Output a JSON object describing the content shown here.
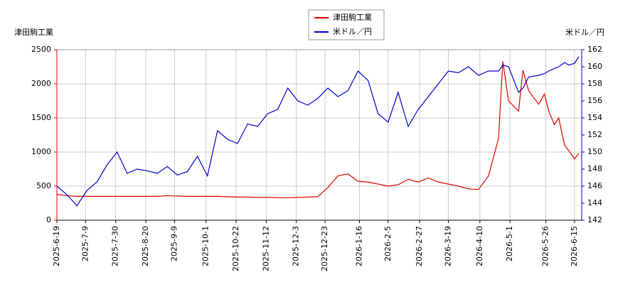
{
  "chart_data": {
    "type": "line",
    "legend": "top",
    "grid": true,
    "ylabel": "津田駒工業",
    "y2label": "米ドル／円",
    "x": [
      "2025-6-19",
      "2025-6-26",
      "2025-7-3",
      "2025-7-10",
      "2025-7-17",
      "2025-7-24",
      "2025-7-31",
      "2025-8-7",
      "2025-8-14",
      "2025-8-21",
      "2025-8-28",
      "2025-9-4",
      "2025-9-11",
      "2025-9-18",
      "2025-9-25",
      "2025-10-2",
      "2025-10-9",
      "2025-10-16",
      "2025-10-23",
      "2025-10-30",
      "2025-11-6",
      "2025-11-13",
      "2025-11-20",
      "2025-11-27",
      "2025-12-4",
      "2025-12-11",
      "2025-12-18",
      "2025-12-25",
      "2026-1-1",
      "2026-1-8",
      "2026-1-15",
      "2026-1-22",
      "2026-1-29",
      "2026-2-5",
      "2026-2-12",
      "2026-2-19",
      "2026-2-26",
      "2026-3-5",
      "2026-3-12",
      "2026-3-19",
      "2026-3-26",
      "2026-4-2",
      "2026-4-9",
      "2026-4-16",
      "2026-4-23",
      "2026-4-26",
      "2026-4-30",
      "2026-5-7",
      "2026-5-10",
      "2026-5-14",
      "2026-5-21",
      "2026-5-25",
      "2026-5-28",
      "2026-6-1",
      "2026-6-4",
      "2026-6-8",
      "2026-6-11",
      "2026-6-15",
      "2026-6-18"
    ],
    "xlim": [
      "2025-6-19",
      "2026-6-20"
    ],
    "xticks": [
      "2025-6-19",
      "2025-7-9",
      "2025-7-30",
      "2025-8-20",
      "2025-9-9",
      "2025-10-1",
      "2025-10-22",
      "2025-11-12",
      "2025-12-3",
      "2025-12-23",
      "2026-1-16",
      "2026-2-5",
      "2026-2-27",
      "2026-3-19",
      "2026-4-10",
      "2026-5-1",
      "2026-5-26",
      "2026-6-15"
    ],
    "ylim": [
      0,
      2500
    ],
    "yticks": [
      0,
      500,
      1000,
      1500,
      2000,
      2500
    ],
    "y2lim": [
      142,
      162
    ],
    "y2ticks": [
      142,
      144,
      146,
      148,
      150,
      152,
      154,
      156,
      158,
      160,
      162
    ],
    "series": [
      {
        "name": "津田駒工業",
        "color": "#dd0000",
        "values": [
          380,
          360,
          350,
          350,
          350,
          350,
          350,
          350,
          350,
          350,
          350,
          360,
          355,
          350,
          350,
          350,
          350,
          345,
          340,
          340,
          335,
          335,
          330,
          330,
          335,
          340,
          345,
          480,
          650,
          680,
          570,
          560,
          530,
          500,
          520,
          600,
          560,
          620,
          560,
          530,
          500,
          460,
          450,
          650,
          1200,
          2330,
          1750,
          1600,
          2200,
          1900,
          1700,
          1850,
          1600,
          1400,
          1500,
          1100,
          1020,
          900,
          980
        ]
      },
      {
        "name": "米ドル／円",
        "color": "#0000cc",
        "axis": "y2",
        "values": [
          146,
          145,
          143.7,
          145.5,
          146.5,
          148.5,
          150,
          147.5,
          148,
          147.8,
          147.5,
          148.3,
          147.3,
          147.7,
          149.5,
          147.2,
          152.5,
          151.5,
          151,
          153.3,
          153,
          154.5,
          155,
          157.5,
          156,
          155.5,
          156.3,
          157.5,
          156.5,
          157.2,
          159.5,
          158.4,
          154.5,
          153.5,
          157,
          153,
          155,
          156.5,
          158,
          159.5,
          159.3,
          160,
          159,
          159.5,
          159.5,
          160.2,
          160,
          157,
          157.5,
          158.8,
          159,
          159.2,
          159.5,
          159.8,
          160,
          160.5,
          160.2,
          160.4,
          161.2
        ]
      }
    ]
  }
}
